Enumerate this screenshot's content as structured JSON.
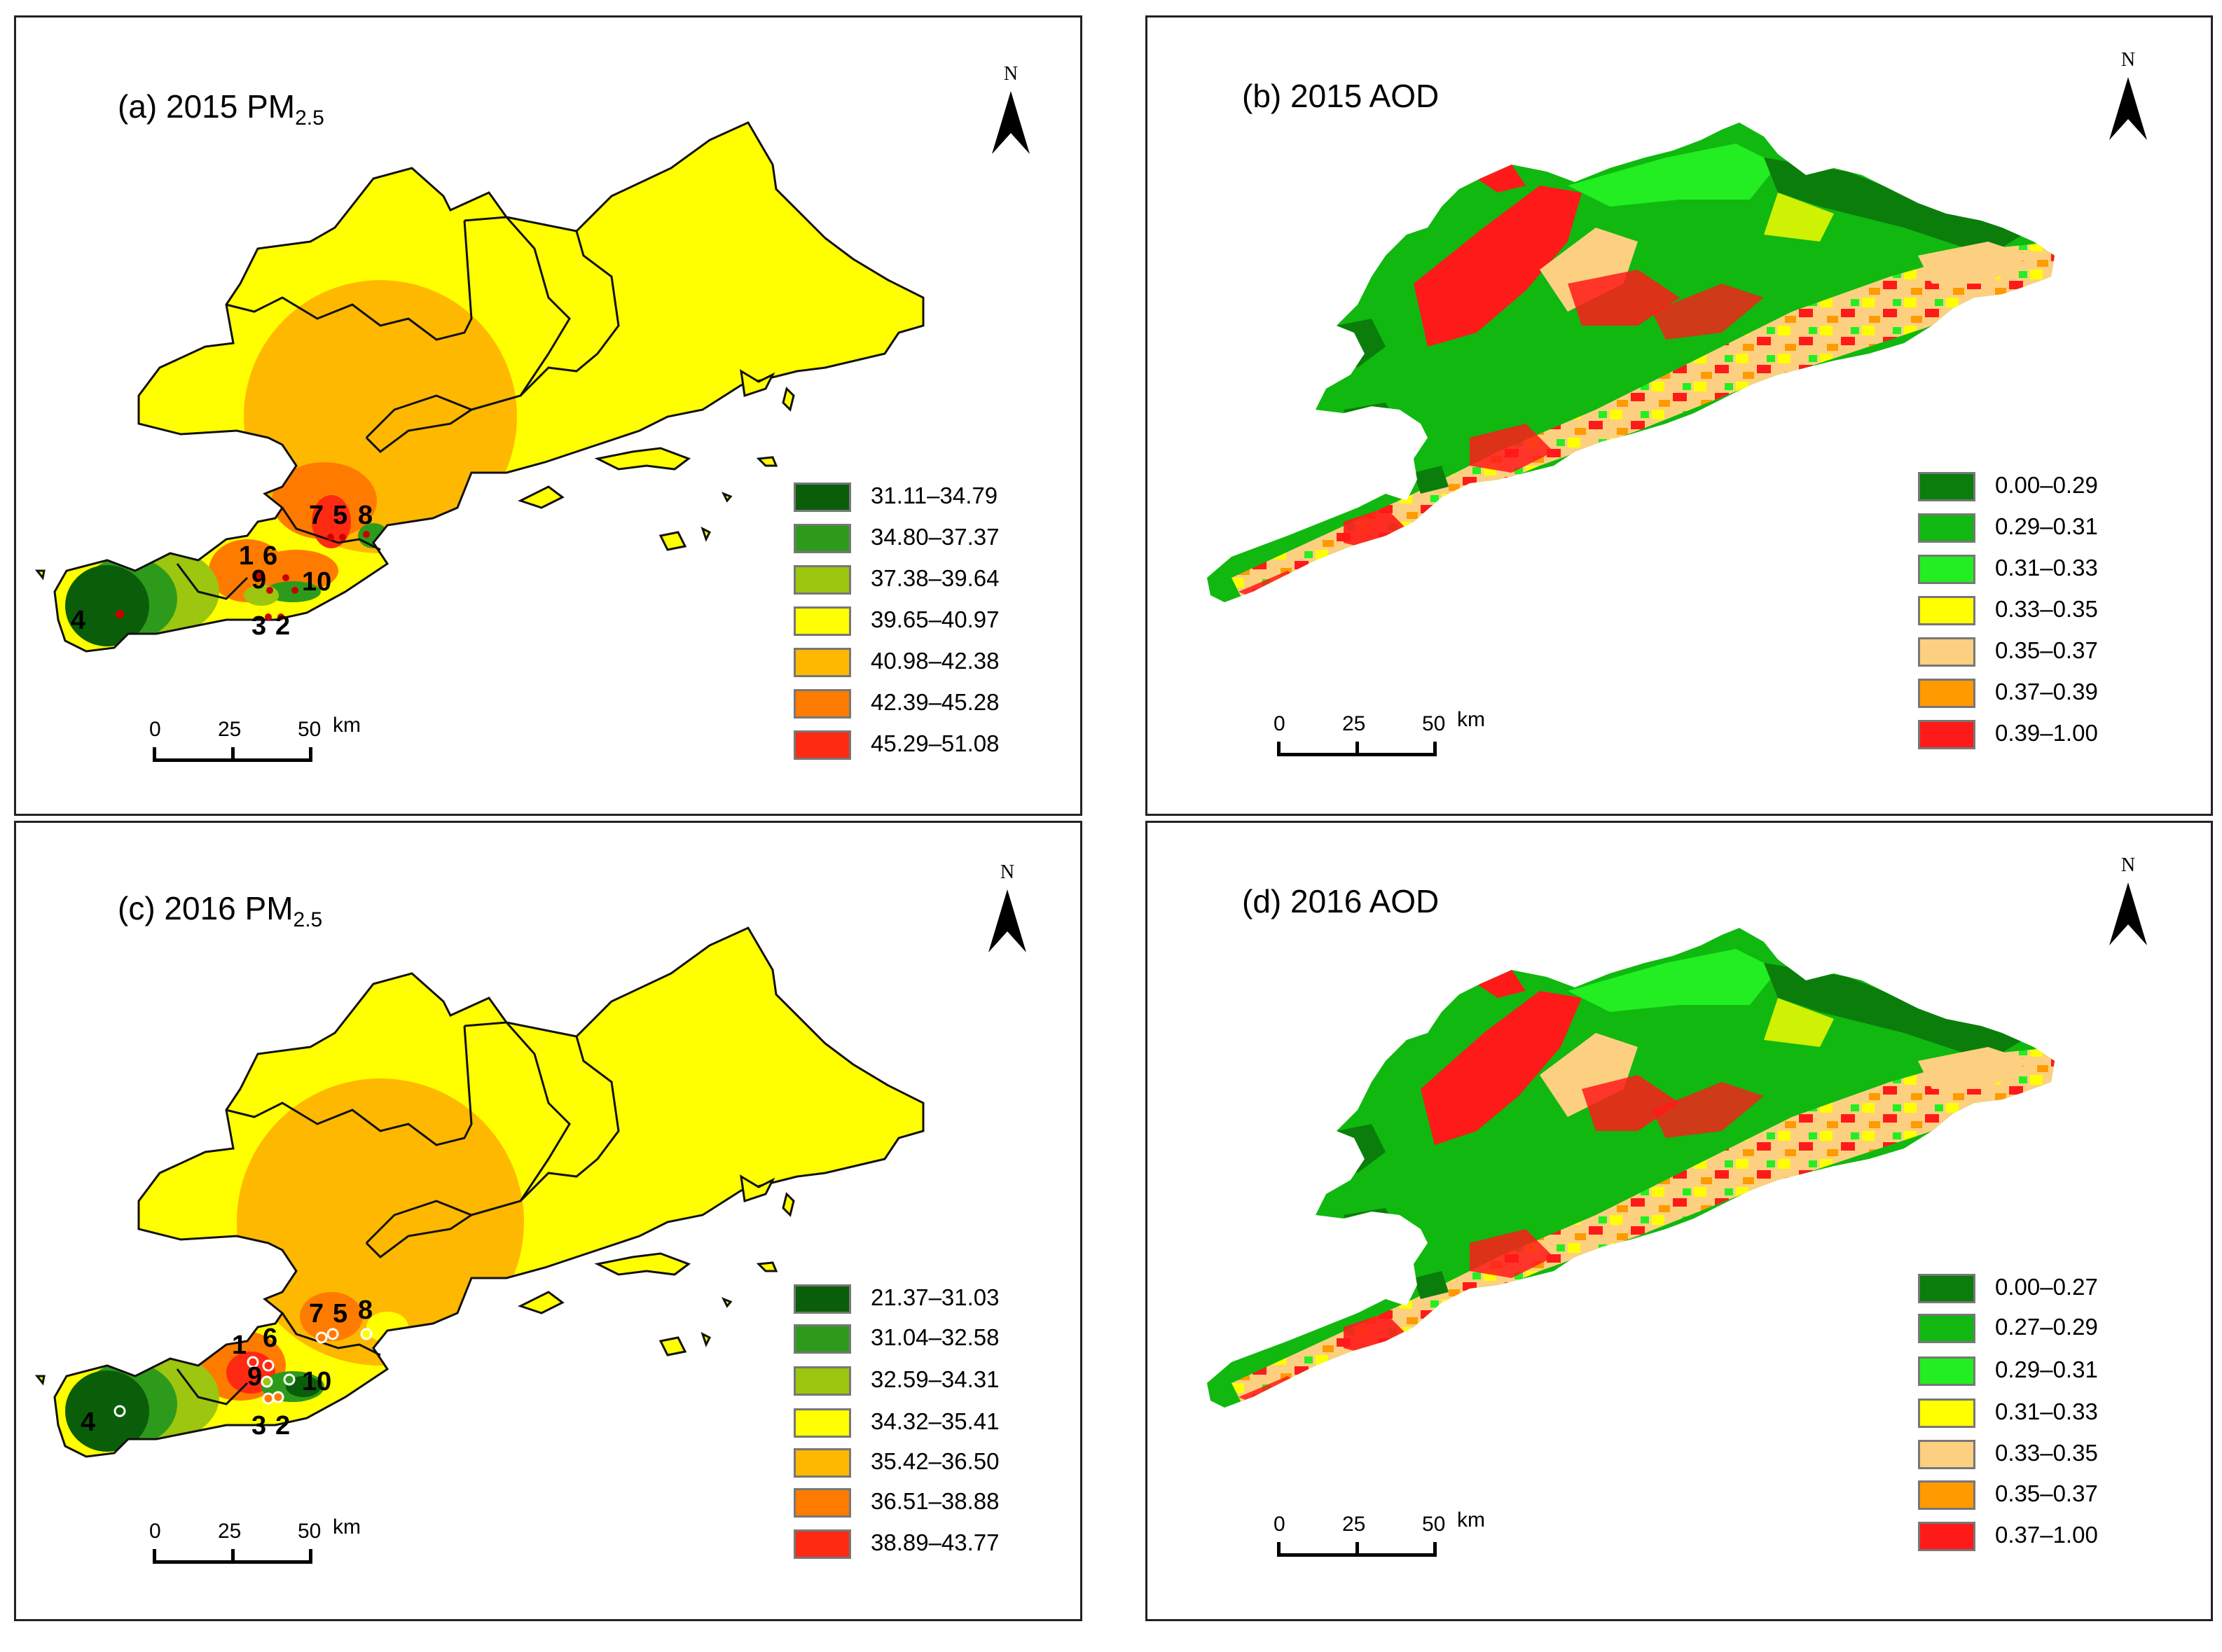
{
  "panels": {
    "a": {
      "title": "(a) 2015 PM",
      "title_sub": "2.5",
      "north": "N",
      "legend": [
        {
          "label": "31.11–34.79",
          "color": "#0a5e0a"
        },
        {
          "label": "34.80–37.37",
          "color": "#2e9a1c"
        },
        {
          "label": "37.38–39.64",
          "color": "#9cc60f"
        },
        {
          "label": "39.65–40.97",
          "color": "#ffff00"
        },
        {
          "label": "40.98–42.38",
          "color": "#ffb800"
        },
        {
          "label": "42.39–45.28",
          "color": "#ff7b00"
        },
        {
          "label": "45.29–51.08",
          "color": "#ff2a12"
        }
      ],
      "scale": {
        "t0": "0",
        "t1": "25",
        "t2": "50",
        "unit": "km"
      },
      "sites": [
        "1",
        "6",
        "7",
        "5",
        "8",
        "9",
        "10",
        "4",
        "3",
        "2"
      ]
    },
    "b": {
      "title": "(b) 2015 AOD",
      "north": "N",
      "legend": [
        {
          "label": "0.00–0.29",
          "color": "#0b7d0b"
        },
        {
          "label": "0.29–0.31",
          "color": "#10b810"
        },
        {
          "label": "0.31–0.33",
          "color": "#22ee22"
        },
        {
          "label": "0.33–0.35",
          "color": "#ffff00"
        },
        {
          "label": "0.35–0.37",
          "color": "#fcd080"
        },
        {
          "label": "0.37–0.39",
          "color": "#ff9a00"
        },
        {
          "label": "0.39–1.00",
          "color": "#ff1a1a"
        }
      ],
      "scale": {
        "t0": "0",
        "t1": "25",
        "t2": "50",
        "unit": "km"
      }
    },
    "c": {
      "title": "(c) 2016 PM",
      "title_sub": "2.5",
      "north": "N",
      "legend": [
        {
          "label": "21.37–31.03",
          "color": "#0a5e0a"
        },
        {
          "label": "31.04–32.58",
          "color": "#2e9a1c"
        },
        {
          "label": "32.59–34.31",
          "color": "#9cc60f"
        },
        {
          "label": "34.32–35.41",
          "color": "#ffff00"
        },
        {
          "label": "35.42–36.50",
          "color": "#ffb800"
        },
        {
          "label": "36.51–38.88",
          "color": "#ff7b00"
        },
        {
          "label": "38.89–43.77",
          "color": "#ff2a12"
        }
      ],
      "scale": {
        "t0": "0",
        "t1": "25",
        "t2": "50",
        "unit": "km"
      },
      "sites": [
        "1",
        "6",
        "7",
        "5",
        "8",
        "9",
        "10",
        "4",
        "3",
        "2"
      ]
    },
    "d": {
      "title": "(d) 2016 AOD",
      "north": "N",
      "legend": [
        {
          "label": "0.00–0.27",
          "color": "#0b7d0b"
        },
        {
          "label": "0.27–0.29",
          "color": "#10b810"
        },
        {
          "label": "0.29–0.31",
          "color": "#22ee22"
        },
        {
          "label": "0.31–0.33",
          "color": "#ffff00"
        },
        {
          "label": "0.33–0.35",
          "color": "#fcd080"
        },
        {
          "label": "0.35–0.37",
          "color": "#ff9a00"
        },
        {
          "label": "0.37–1.00",
          "color": "#ff1a1a"
        }
      ],
      "scale": {
        "t0": "0",
        "t1": "25",
        "t2": "50",
        "unit": "km"
      }
    }
  }
}
